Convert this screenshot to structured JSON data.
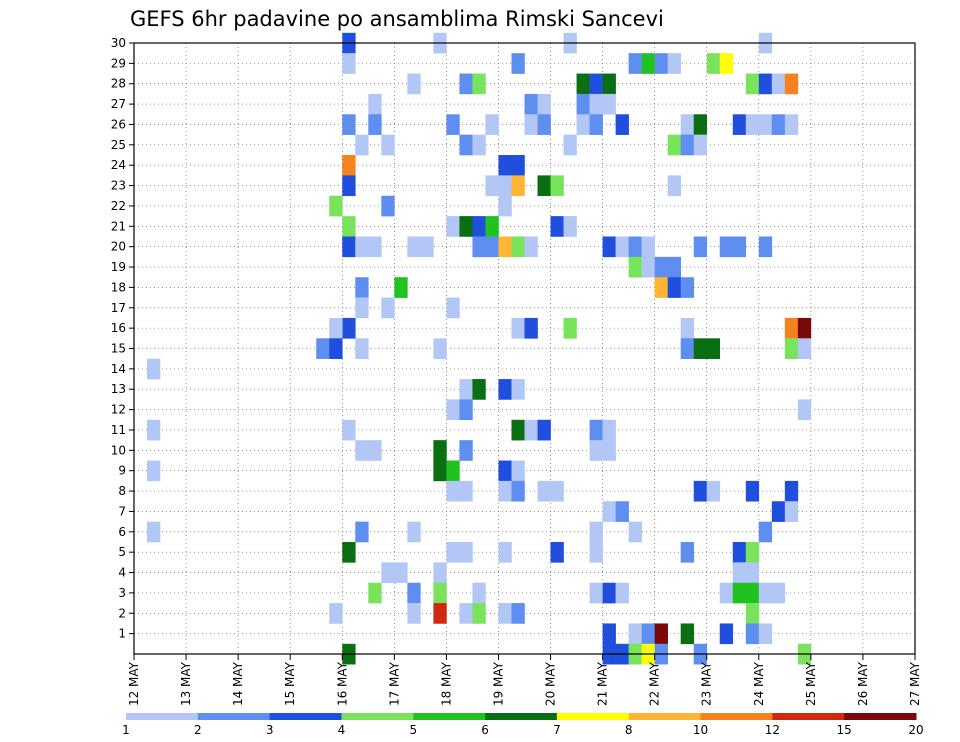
{
  "chart_data": {
    "type": "heatmap",
    "title": "GEFS 6hr padavine po ansamblima Rimski Sancevi",
    "xlabel": "",
    "ylabel": "",
    "x_tick_labels": [
      "12 MAY",
      "13 MAY",
      "14 MAY",
      "15 MAY",
      "16 MAY",
      "17 MAY",
      "18 MAY",
      "19 MAY",
      "20 MAY",
      "21 MAY",
      "22 MAY",
      "23 MAY",
      "24 MAY",
      "25 MAY",
      "26 MAY",
      "27 MAY"
    ],
    "y_tick_labels": [
      "1",
      "2",
      "3",
      "4",
      "5",
      "6",
      "7",
      "8",
      "9",
      "10",
      "11",
      "12",
      "13",
      "14",
      "15",
      "16",
      "17",
      "18",
      "19",
      "20",
      "21",
      "22",
      "23",
      "24",
      "25",
      "26",
      "27",
      "28",
      "29",
      "30"
    ],
    "x_steps_per_day": 4,
    "y_range": [
      0,
      30
    ],
    "grid": "dotted",
    "colorbar": {
      "position": "bottom",
      "tick_labels": [
        "1",
        "2",
        "3",
        "4",
        "5",
        "6",
        "7",
        "8",
        "10",
        "12",
        "15",
        "20"
      ],
      "colors": [
        "#b3c7f7",
        "#5e8ef0",
        "#1f4fdc",
        "#7ae35c",
        "#1fc21f",
        "#0a6e12",
        "#ffff00",
        "#ffb432",
        "#f5821f",
        "#d22810",
        "#7a0808"
      ]
    },
    "cells": [
      [
        16,
        30,
        3
      ],
      [
        23,
        30,
        1
      ],
      [
        33,
        30,
        1
      ],
      [
        48,
        30,
        1
      ],
      [
        16,
        29,
        1
      ],
      [
        29,
        29,
        2
      ],
      [
        38,
        29,
        2
      ],
      [
        39,
        29,
        5
      ],
      [
        40,
        29,
        2
      ],
      [
        41,
        29,
        1
      ],
      [
        44,
        29,
        4
      ],
      [
        45,
        29,
        7
      ],
      [
        21,
        28,
        1
      ],
      [
        25,
        28,
        2
      ],
      [
        26,
        28,
        4
      ],
      [
        34,
        28,
        6
      ],
      [
        35,
        28,
        3
      ],
      [
        36,
        28,
        6
      ],
      [
        47,
        28,
        4
      ],
      [
        48,
        28,
        3
      ],
      [
        49,
        28,
        1
      ],
      [
        50,
        28,
        9
      ],
      [
        18,
        27,
        1
      ],
      [
        30,
        27,
        2
      ],
      [
        31,
        27,
        1
      ],
      [
        34,
        27,
        2
      ],
      [
        35,
        27,
        1
      ],
      [
        36,
        27,
        1
      ],
      [
        16,
        26,
        2
      ],
      [
        18,
        26,
        2
      ],
      [
        24,
        26,
        2
      ],
      [
        27,
        26,
        1
      ],
      [
        30,
        26,
        1
      ],
      [
        31,
        26,
        2
      ],
      [
        34,
        26,
        1
      ],
      [
        35,
        26,
        2
      ],
      [
        37,
        26,
        3
      ],
      [
        42,
        26,
        1
      ],
      [
        43,
        26,
        6
      ],
      [
        46,
        26,
        3
      ],
      [
        47,
        26,
        1
      ],
      [
        48,
        26,
        1
      ],
      [
        49,
        26,
        2
      ],
      [
        50,
        26,
        1
      ],
      [
        17,
        25,
        1
      ],
      [
        19,
        25,
        1
      ],
      [
        25,
        25,
        2
      ],
      [
        26,
        25,
        1
      ],
      [
        33,
        25,
        1
      ],
      [
        41,
        25,
        4
      ],
      [
        42,
        25,
        2
      ],
      [
        43,
        25,
        1
      ],
      [
        16,
        24,
        9
      ],
      [
        28,
        24,
        3
      ],
      [
        29,
        24,
        3
      ],
      [
        16,
        23,
        3
      ],
      [
        27,
        23,
        1
      ],
      [
        28,
        23,
        1
      ],
      [
        29,
        23,
        8
      ],
      [
        31,
        23,
        6
      ],
      [
        32,
        23,
        4
      ],
      [
        41,
        23,
        1
      ],
      [
        15,
        22,
        4
      ],
      [
        19,
        22,
        2
      ],
      [
        28,
        22,
        1
      ],
      [
        16,
        21,
        4
      ],
      [
        24,
        21,
        1
      ],
      [
        25,
        21,
        6
      ],
      [
        26,
        21,
        3
      ],
      [
        27,
        21,
        5
      ],
      [
        32,
        21,
        3
      ],
      [
        33,
        21,
        1
      ],
      [
        16,
        20,
        3
      ],
      [
        17,
        20,
        1
      ],
      [
        18,
        20,
        1
      ],
      [
        21,
        20,
        1
      ],
      [
        22,
        20,
        1
      ],
      [
        26,
        20,
        2
      ],
      [
        27,
        20,
        2
      ],
      [
        28,
        20,
        8
      ],
      [
        29,
        20,
        4
      ],
      [
        30,
        20,
        1
      ],
      [
        36,
        20,
        3
      ],
      [
        37,
        20,
        1
      ],
      [
        38,
        20,
        2
      ],
      [
        39,
        20,
        1
      ],
      [
        43,
        20,
        2
      ],
      [
        45,
        20,
        2
      ],
      [
        46,
        20,
        2
      ],
      [
        48,
        20,
        2
      ],
      [
        38,
        19,
        4
      ],
      [
        39,
        19,
        1
      ],
      [
        40,
        19,
        2
      ],
      [
        41,
        19,
        2
      ],
      [
        17,
        18,
        2
      ],
      [
        20,
        18,
        5
      ],
      [
        40,
        18,
        8
      ],
      [
        41,
        18,
        3
      ],
      [
        42,
        18,
        2
      ],
      [
        17,
        17,
        1
      ],
      [
        19,
        17,
        1
      ],
      [
        24,
        17,
        1
      ],
      [
        16,
        16,
        3
      ],
      [
        15,
        16,
        1
      ],
      [
        29,
        16,
        1
      ],
      [
        30,
        16,
        3
      ],
      [
        33,
        16,
        4
      ],
      [
        42,
        16,
        1
      ],
      [
        50,
        16,
        9
      ],
      [
        51,
        16,
        11
      ],
      [
        14,
        15,
        2
      ],
      [
        15,
        15,
        3
      ],
      [
        17,
        15,
        1
      ],
      [
        23,
        15,
        1
      ],
      [
        42,
        15,
        2
      ],
      [
        43,
        15,
        6
      ],
      [
        44,
        15,
        6
      ],
      [
        50,
        15,
        4
      ],
      [
        51,
        15,
        1
      ],
      [
        1,
        14,
        1
      ],
      [
        25,
        13,
        1
      ],
      [
        26,
        13,
        6
      ],
      [
        28,
        13,
        3
      ],
      [
        29,
        13,
        1
      ],
      [
        24,
        12,
        1
      ],
      [
        25,
        12,
        2
      ],
      [
        51,
        12,
        1
      ],
      [
        1,
        11,
        1
      ],
      [
        16,
        11,
        1
      ],
      [
        29,
        11,
        6
      ],
      [
        30,
        11,
        1
      ],
      [
        31,
        11,
        3
      ],
      [
        35,
        11,
        2
      ],
      [
        36,
        11,
        1
      ],
      [
        17,
        10,
        1
      ],
      [
        18,
        10,
        1
      ],
      [
        23,
        10,
        6
      ],
      [
        25,
        10,
        2
      ],
      [
        35,
        10,
        1
      ],
      [
        36,
        10,
        1
      ],
      [
        23,
        9,
        6
      ],
      [
        24,
        9,
        5
      ],
      [
        28,
        9,
        3
      ],
      [
        29,
        9,
        1
      ],
      [
        1,
        9,
        1
      ],
      [
        24,
        8,
        1
      ],
      [
        25,
        8,
        1
      ],
      [
        28,
        8,
        1
      ],
      [
        29,
        8,
        2
      ],
      [
        31,
        8,
        1
      ],
      [
        32,
        8,
        1
      ],
      [
        43,
        8,
        3
      ],
      [
        44,
        8,
        1
      ],
      [
        47,
        8,
        3
      ],
      [
        50,
        8,
        3
      ],
      [
        36,
        7,
        1
      ],
      [
        37,
        7,
        2
      ],
      [
        49,
        7,
        3
      ],
      [
        50,
        7,
        1
      ],
      [
        1,
        6,
        1
      ],
      [
        17,
        6,
        2
      ],
      [
        21,
        6,
        1
      ],
      [
        35,
        6,
        1
      ],
      [
        38,
        6,
        1
      ],
      [
        48,
        6,
        2
      ],
      [
        16,
        5,
        6
      ],
      [
        24,
        5,
        1
      ],
      [
        25,
        5,
        1
      ],
      [
        28,
        5,
        1
      ],
      [
        32,
        5,
        3
      ],
      [
        35,
        5,
        1
      ],
      [
        42,
        5,
        2
      ],
      [
        46,
        5,
        3
      ],
      [
        47,
        5,
        4
      ],
      [
        19,
        4,
        1
      ],
      [
        20,
        4,
        1
      ],
      [
        23,
        4,
        1
      ],
      [
        46,
        4,
        1
      ],
      [
        47,
        4,
        1
      ],
      [
        18,
        3,
        4
      ],
      [
        21,
        3,
        2
      ],
      [
        23,
        3,
        4
      ],
      [
        26,
        3,
        1
      ],
      [
        35,
        3,
        1
      ],
      [
        36,
        3,
        3
      ],
      [
        37,
        3,
        1
      ],
      [
        45,
        3,
        1
      ],
      [
        46,
        3,
        5
      ],
      [
        47,
        3,
        5
      ],
      [
        48,
        3,
        1
      ],
      [
        49,
        3,
        1
      ],
      [
        15,
        2,
        1
      ],
      [
        21,
        2,
        1
      ],
      [
        23,
        2,
        10
      ],
      [
        25,
        2,
        1
      ],
      [
        26,
        2,
        4
      ],
      [
        28,
        2,
        1
      ],
      [
        29,
        2,
        2
      ],
      [
        47,
        2,
        4
      ],
      [
        36,
        1,
        3
      ],
      [
        38,
        1,
        1
      ],
      [
        39,
        1,
        2
      ],
      [
        40,
        1,
        11
      ],
      [
        42,
        1,
        6
      ],
      [
        45,
        1,
        3
      ],
      [
        47,
        1,
        2
      ],
      [
        48,
        1,
        1
      ],
      [
        16,
        0,
        6
      ],
      [
        36,
        0,
        3
      ],
      [
        37,
        0,
        3
      ],
      [
        38,
        0,
        4
      ],
      [
        39,
        0,
        7
      ],
      [
        40,
        0,
        2
      ],
      [
        43,
        0,
        2
      ],
      [
        51,
        0,
        4
      ]
    ]
  }
}
